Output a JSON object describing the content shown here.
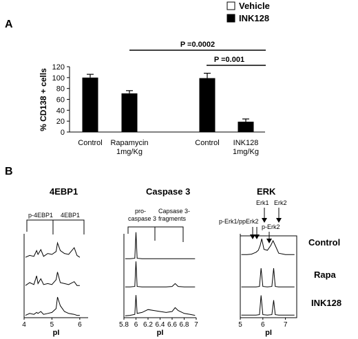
{
  "legend": [
    {
      "label": "Vehicle",
      "color": "#ffffff"
    },
    {
      "label": "INK128",
      "color": "#000000"
    }
  ],
  "panel_a": {
    "letter": "A",
    "pvalues": [
      {
        "label": "P =0.0002"
      },
      {
        "label": "P =0.001"
      }
    ]
  },
  "panel_b": {
    "letter": "B",
    "subpanels": [
      {
        "title": "4EBP1",
        "annotations": [
          "p-4EBP1",
          "4EBP1"
        ],
        "xlabel": "pI",
        "xticks": [
          "4",
          "5",
          "6"
        ]
      },
      {
        "title": "Caspase 3",
        "annotations": [
          "pro-",
          "caspase 3",
          "Capsase 3-",
          "fragments"
        ],
        "xlabel": "pI",
        "xticks": [
          "5.8",
          "6",
          "6.2",
          "6.4",
          "6.6",
          "6.8",
          "7"
        ]
      },
      {
        "title": "ERK",
        "annotations": [
          "Erk1",
          "Erk2",
          "p-Erk1/ppErk2",
          "p-Erk2"
        ],
        "xlabel": "pI",
        "xticks": [
          "5",
          "6",
          "7"
        ]
      }
    ],
    "row_labels": [
      "Control",
      "Rapa",
      "INK128"
    ]
  },
  "chart_data": [
    {
      "type": "bar",
      "categories": [
        "Control",
        "Rapamycin 1mg/Kg",
        "Control",
        "INK128 1mg/Kg"
      ],
      "category_lines": [
        [
          "Control"
        ],
        [
          "Rapamycin",
          "1mg/Kg"
        ],
        [
          "Control"
        ],
        [
          "INK128",
          "1mg/Kg"
        ]
      ],
      "values": [
        100,
        71,
        99,
        19
      ],
      "errors": [
        6,
        5,
        9,
        5
      ],
      "bar_color": "#000000",
      "ylabel": "% CD138 + cells",
      "ylim": [
        0,
        120
      ],
      "yticks": [
        0,
        20,
        40,
        60,
        80,
        100,
        120
      ],
      "grid": false
    },
    {
      "type": "line",
      "title": "4EBP1",
      "xlabel": "pI",
      "xlim": [
        4,
        6.3
      ],
      "series": [
        {
          "name": "Control",
          "x": [
            4.05,
            4.2,
            4.35,
            4.45,
            4.5,
            4.6,
            4.7,
            4.85,
            5.0,
            5.15,
            5.2,
            5.3,
            5.45,
            5.6,
            5.8,
            5.9,
            6.0
          ],
          "y": [
            0.2,
            0.4,
            0.3,
            0.9,
            0.5,
            1.0,
            0.3,
            0.6,
            0.5,
            0.8,
            1.7,
            0.9,
            0.6,
            0.5,
            1.2,
            0.4,
            0.2
          ]
        },
        {
          "name": "Rapa",
          "x": [
            4.05,
            4.2,
            4.35,
            4.45,
            4.5,
            4.6,
            4.7,
            4.85,
            5.0,
            5.15,
            5.2,
            5.3,
            5.45,
            5.6,
            5.8,
            5.9,
            6.0
          ],
          "y": [
            0.2,
            0.5,
            0.3,
            1.2,
            0.4,
            0.9,
            0.3,
            0.4,
            0.3,
            0.8,
            1.6,
            0.5,
            0.4,
            0.3,
            0.6,
            0.2,
            0.2
          ]
        },
        {
          "name": "INK128",
          "x": [
            4.05,
            4.2,
            4.35,
            4.45,
            4.5,
            4.6,
            4.7,
            4.85,
            5.0,
            5.15,
            5.2,
            5.3,
            5.45,
            5.6,
            5.8,
            5.9,
            6.0
          ],
          "y": [
            0.1,
            0.3,
            0.2,
            0.4,
            0.3,
            0.5,
            0.2,
            0.3,
            0.4,
            0.8,
            2.0,
            1.1,
            0.5,
            0.3,
            0.2,
            0.1,
            0.1
          ]
        }
      ]
    },
    {
      "type": "line",
      "title": "Caspase 3",
      "xlabel": "pI",
      "xlim": [
        5.8,
        7
      ],
      "series": [
        {
          "name": "Control",
          "x": [
            5.82,
            5.9,
            5.98,
            6.0,
            6.02,
            6.1,
            6.2,
            6.3,
            6.4,
            6.5,
            6.6,
            6.7,
            6.8,
            6.9,
            6.98
          ],
          "y": [
            0.05,
            0.05,
            0.1,
            2.8,
            0.1,
            0.05,
            0.05,
            0.05,
            0.05,
            0.05,
            0.05,
            0.05,
            0.05,
            0.05,
            0.05
          ]
        },
        {
          "name": "Rapa",
          "x": [
            5.82,
            5.9,
            5.98,
            6.0,
            6.02,
            6.1,
            6.2,
            6.3,
            6.4,
            6.5,
            6.6,
            6.65,
            6.7,
            6.8,
            6.9,
            6.98
          ],
          "y": [
            0.05,
            0.05,
            0.1,
            2.7,
            0.1,
            0.05,
            0.05,
            0.05,
            0.05,
            0.05,
            0.1,
            0.4,
            0.1,
            0.05,
            0.05,
            0.05
          ]
        },
        {
          "name": "INK128",
          "x": [
            5.82,
            5.9,
            5.98,
            6.0,
            6.02,
            6.1,
            6.2,
            6.3,
            6.4,
            6.5,
            6.6,
            6.65,
            6.7,
            6.8,
            6.9,
            6.98
          ],
          "y": [
            0.05,
            0.1,
            0.2,
            2.2,
            0.3,
            0.4,
            0.7,
            0.6,
            0.5,
            0.4,
            0.5,
            0.9,
            0.6,
            0.3,
            0.2,
            0.1
          ]
        }
      ]
    },
    {
      "type": "line",
      "title": "ERK",
      "xlabel": "pI",
      "xlim": [
        5,
        7.5
      ],
      "series": [
        {
          "name": "Control",
          "x": [
            5.05,
            5.3,
            5.5,
            5.6,
            5.7,
            5.8,
            5.88,
            5.95,
            6.05,
            6.2,
            6.35,
            6.45,
            6.55,
            6.7,
            7.0,
            7.4
          ],
          "y": [
            0.05,
            0.05,
            0.1,
            0.2,
            0.3,
            0.5,
            1.0,
            1.7,
            0.6,
            0.5,
            1.0,
            1.5,
            1.0,
            0.2,
            0.05,
            0.05
          ]
        },
        {
          "name": "Rapa",
          "x": [
            5.05,
            5.3,
            5.5,
            5.7,
            5.85,
            5.92,
            6.0,
            6.2,
            6.4,
            6.48,
            6.55,
            6.7,
            7.0,
            7.4
          ],
          "y": [
            0.05,
            0.05,
            0.05,
            0.05,
            0.1,
            2.0,
            0.1,
            0.05,
            0.1,
            2.0,
            0.1,
            0.05,
            0.05,
            0.05
          ]
        },
        {
          "name": "INK128",
          "x": [
            5.05,
            5.3,
            5.5,
            5.7,
            5.85,
            5.92,
            6.0,
            6.2,
            6.4,
            6.48,
            6.55,
            6.7,
            7.0,
            7.4
          ],
          "y": [
            0.05,
            0.05,
            0.05,
            0.05,
            0.1,
            2.1,
            0.1,
            0.05,
            0.1,
            1.6,
            0.1,
            0.05,
            0.05,
            0.05
          ]
        }
      ]
    }
  ]
}
